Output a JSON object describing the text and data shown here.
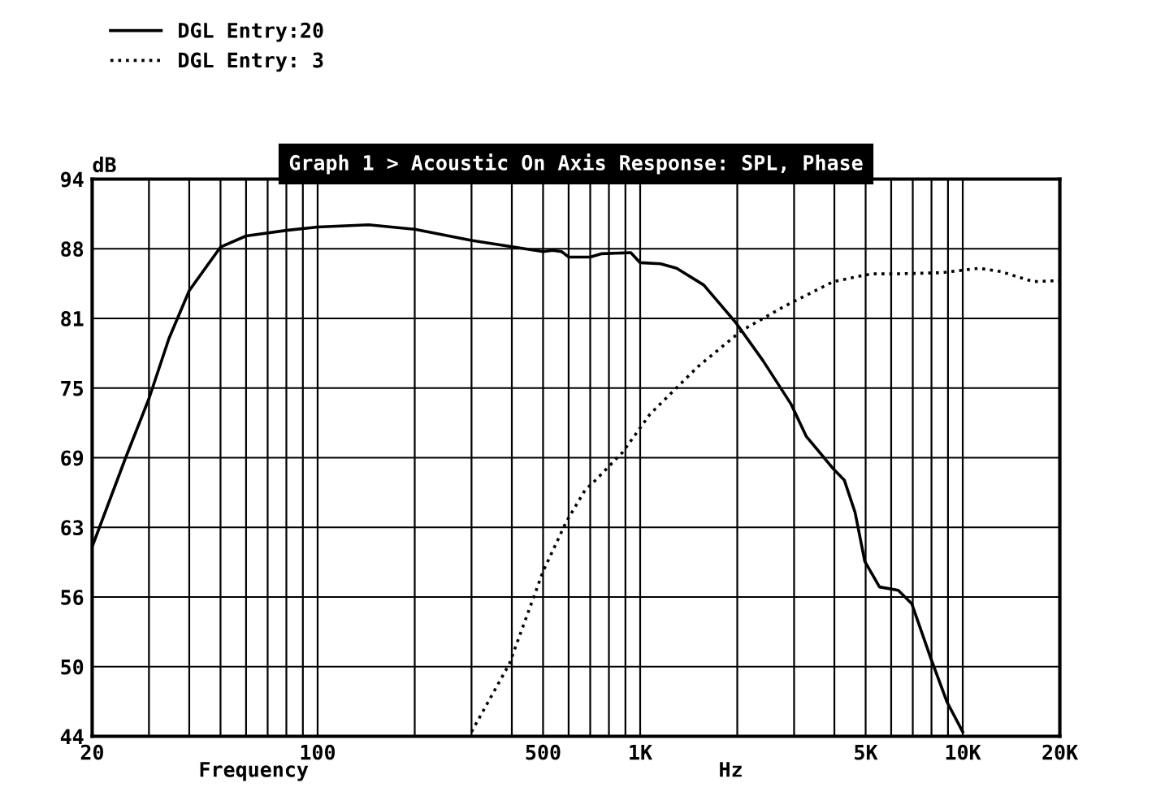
{
  "chart_data": {
    "type": "line",
    "title": "Graph 1 > Acoustic On Axis Response: SPL, Phase",
    "xlabel": "Frequency",
    "ylabel": "dB",
    "annotations": [
      "Hz"
    ],
    "log": "x",
    "grid": true,
    "legend": "top left",
    "xlim": [
      20,
      20000
    ],
    "xticks": [
      20,
      {
        "value": 30,
        "label": null
      },
      {
        "value": 40,
        "label": null
      },
      {
        "value": 50,
        "label": null
      },
      {
        "value": 60,
        "label": null
      },
      {
        "value": 70,
        "label": null
      },
      {
        "value": 80,
        "label": null
      },
      {
        "value": 90,
        "label": null
      },
      100,
      {
        "value": 200,
        "label": null
      },
      {
        "value": 300,
        "label": null
      },
      {
        "value": 400,
        "label": null
      },
      500,
      {
        "value": 600,
        "label": null
      },
      {
        "value": 700,
        "label": null
      },
      {
        "value": 800,
        "label": null
      },
      {
        "value": 900,
        "label": null
      },
      {
        "value": 1000,
        "label": "1K"
      },
      {
        "value": 2000,
        "label": null
      },
      {
        "value": 3000,
        "label": null
      },
      {
        "value": 4000,
        "label": null
      },
      {
        "value": 5000,
        "label": "5K"
      },
      {
        "value": 6000,
        "label": null
      },
      {
        "value": 7000,
        "label": null
      },
      {
        "value": 8000,
        "label": null
      },
      {
        "value": 9000,
        "label": null
      },
      {
        "value": 10000,
        "label": "10K"
      },
      {
        "value": 20000,
        "label": "20K"
      }
    ],
    "ylim": [
      44,
      94
    ],
    "yticks": [
      44,
      {
        "value": 50.25,
        "label": "50"
      },
      {
        "value": 56.5,
        "label": "56"
      },
      {
        "value": 62.75,
        "label": "63"
      },
      69,
      {
        "value": 75.25,
        "label": "75"
      },
      {
        "value": 81.5,
        "label": "81"
      },
      {
        "value": 87.75,
        "label": "88"
      },
      94
    ],
    "series": [
      {
        "name": "DGL Entry:20",
        "color": "#000000",
        "line_style": "solid",
        "x": [
          20,
          25.4,
          30,
          34.6,
          40,
          50,
          60,
          80,
          100,
          144,
          200,
          300,
          500,
          535,
          570,
          601,
          700,
          757,
          935,
          1000,
          1157,
          1297,
          1574,
          1766,
          1982,
          2404,
          2937,
          3275,
          3970,
          4292,
          4636,
          4970,
          5520,
          6310,
          6950,
          7960,
          8930,
          10000
        ],
        "values": [
          61.0,
          69.0,
          74.3,
          79.7,
          84.0,
          87.9,
          88.9,
          89.4,
          89.7,
          89.9,
          89.5,
          88.5,
          87.5,
          87.6,
          87.5,
          87.0,
          87.0,
          87.3,
          87.4,
          86.5,
          86.4,
          86.0,
          84.5,
          82.8,
          81.1,
          77.7,
          73.8,
          70.9,
          68.0,
          67.0,
          64.1,
          59.7,
          57.4,
          57.1,
          55.9,
          51.0,
          47.1,
          44.4
        ]
      },
      {
        "name": "DGL Entry: 3",
        "color": "#000000",
        "line_style": "dotted",
        "x": [
          300,
          393,
          500,
          589,
          675,
          728,
          883,
          1072,
          1514,
          2062,
          2805,
          3970,
          5200,
          6310,
          8600,
          11250,
          13120,
          16540,
          20000
        ],
        "values": [
          44.4,
          50.5,
          58.8,
          63.2,
          66.1,
          67.0,
          69.5,
          72.9,
          77.2,
          80.4,
          82.6,
          84.8,
          85.5,
          85.5,
          85.6,
          86.0,
          85.7,
          84.8,
          84.9
        ]
      }
    ]
  }
}
